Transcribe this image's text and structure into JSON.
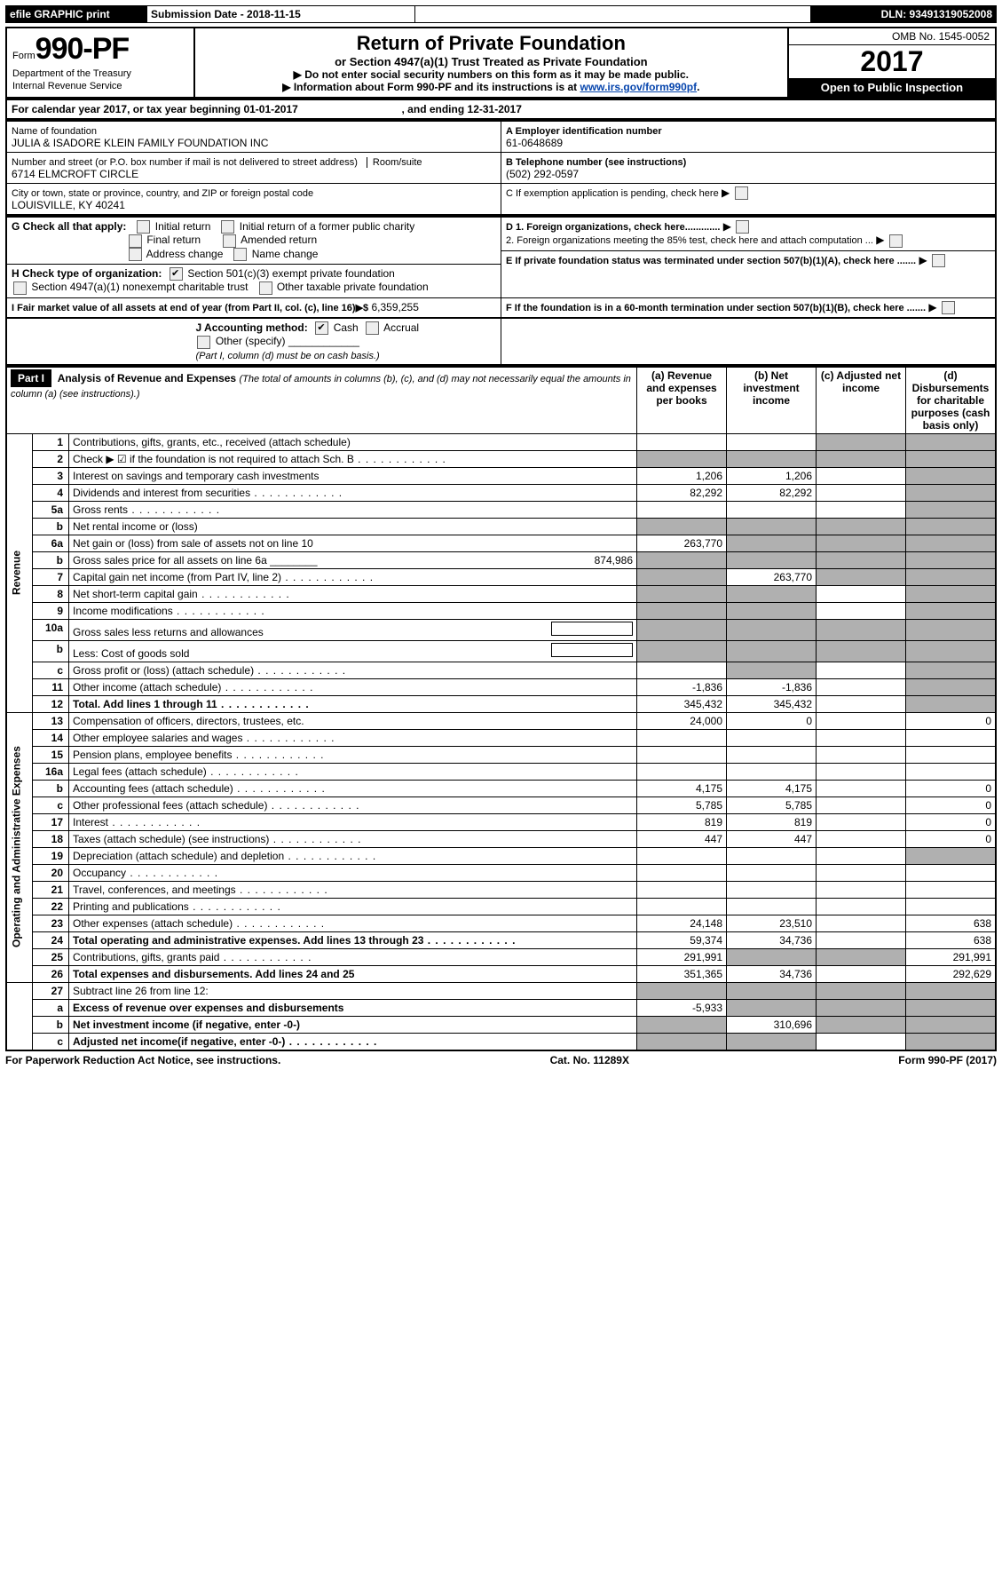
{
  "topbar": {
    "efile": "efile GRAPHIC print",
    "sub_label": "Submission Date - 2018-11-15",
    "dln_label": "DLN: 93491319052008"
  },
  "header": {
    "form_prefix": "Form",
    "form_number": "990-PF",
    "dept": "Department of the Treasury",
    "irs": "Internal Revenue Service",
    "title": "Return of Private Foundation",
    "subtitle": "or Section 4947(a)(1) Trust Treated as Private Foundation",
    "warn": "▶ Do not enter social security numbers on this form as it may be made public.",
    "info_pre": "▶ Information about Form 990-PF and its instructions is at ",
    "info_link": "www.irs.gov/form990pf",
    "omb": "OMB No. 1545-0052",
    "year": "2017",
    "open": "Open to Public Inspection"
  },
  "cal": {
    "line": "For calendar year 2017, or tax year beginning 01-01-2017",
    "mid": ", and ending 12-31-2017"
  },
  "id": {
    "name_label": "Name of foundation",
    "name": "JULIA & ISADORE KLEIN FAMILY FOUNDATION INC",
    "street_label": "Number and street (or P.O. box number if mail is not delivered to street address)",
    "room_label": "Room/suite",
    "street": "6714 ELMCROFT CIRCLE",
    "city_label": "City or town, state or province, country, and ZIP or foreign postal code",
    "city": "LOUISVILLE, KY  40241",
    "ein_label": "A Employer identification number",
    "ein": "61-0648689",
    "phone_label": "B Telephone number (see instructions)",
    "phone": "(502) 292-0597",
    "c": "C If exemption application is pending, check here",
    "d1": "D 1. Foreign organizations, check here.............",
    "d2": "2. Foreign organizations meeting the 85% test, check here and attach computation ...",
    "e": "E  If private foundation status was terminated under section 507(b)(1)(A), check here .......",
    "f": "F  If the foundation is in a 60-month termination under section 507(b)(1)(B), check here .......",
    "g_label": "G Check all that apply:",
    "g_opts": {
      "initial": "Initial return",
      "initial_former": "Initial return of a former public charity",
      "final": "Final return",
      "amended": "Amended return",
      "address": "Address change",
      "name": "Name change"
    },
    "h_label": "H Check type of organization:",
    "h1": "Section 501(c)(3) exempt private foundation",
    "h2": "Section 4947(a)(1) nonexempt charitable trust",
    "h3": "Other taxable private foundation",
    "i_label": "I Fair market value of all assets at end of year (from Part II, col. (c), line 16)▶$",
    "i_val": "6,359,255",
    "j_label": "J Accounting method:",
    "j_cash": "Cash",
    "j_accrual": "Accrual",
    "j_other": "Other (specify)",
    "j_note": "(Part I, column (d) must be on cash basis.)"
  },
  "part1": {
    "label": "Part I",
    "title": "Analysis of Revenue and Expenses",
    "note": "(The total of amounts in columns (b), (c), and (d) may not necessarily equal the amounts in column (a) (see instructions).)",
    "cols": {
      "a": "(a)   Revenue and expenses per books",
      "b": "(b)   Net investment income",
      "c": "(c)  Adjusted net income",
      "d": "(d)  Disbursements for charitable purposes (cash basis only)"
    },
    "rev_label": "Revenue",
    "exp_label": "Operating and Administrative Expenses"
  },
  "rows": [
    {
      "n": "1",
      "d": "Contributions, gifts, grants, etc., received (attach schedule)"
    },
    {
      "n": "2",
      "d": "Check ▶ ☑ if the foundation is not required to attach Sch. B",
      "dots": true
    },
    {
      "n": "3",
      "d": "Interest on savings and temporary cash investments",
      "a": "1,206",
      "b": "1,206"
    },
    {
      "n": "4",
      "d": "Dividends and interest from securities",
      "dots": true,
      "a": "82,292",
      "b": "82,292"
    },
    {
      "n": "5a",
      "d": "Gross rents",
      "dots": true
    },
    {
      "n": "b",
      "d": "Net rental income or (loss)"
    },
    {
      "n": "6a",
      "d": "Net gain or (loss) from sale of assets not on line 10",
      "a": "263,770"
    },
    {
      "n": "b",
      "d": "Gross sales price for all assets on line 6a",
      "inline": "874,986"
    },
    {
      "n": "7",
      "d": "Capital gain net income (from Part IV, line 2)",
      "dots": true,
      "b": "263,770"
    },
    {
      "n": "8",
      "d": "Net short-term capital gain",
      "dots": true
    },
    {
      "n": "9",
      "d": "Income modifications",
      "dots": true
    },
    {
      "n": "10a",
      "d": "Gross sales less returns and allowances",
      "box": true
    },
    {
      "n": "b",
      "d": "Less: Cost of goods sold",
      "dots": true,
      "box": true
    },
    {
      "n": "c",
      "d": "Gross profit or (loss) (attach schedule)",
      "dots": true
    },
    {
      "n": "11",
      "d": "Other income (attach schedule)",
      "dots": true,
      "a": "-1,836",
      "b": "-1,836"
    },
    {
      "n": "12",
      "d": "Total. Add lines 1 through 11",
      "bold": true,
      "dots": true,
      "a": "345,432",
      "b": "345,432"
    }
  ],
  "exp_rows": [
    {
      "n": "13",
      "d": "Compensation of officers, directors, trustees, etc.",
      "a": "24,000",
      "b": "0",
      "dd": "0"
    },
    {
      "n": "14",
      "d": "Other employee salaries and wages",
      "dots": true
    },
    {
      "n": "15",
      "d": "Pension plans, employee benefits",
      "dots": true
    },
    {
      "n": "16a",
      "d": "Legal fees (attach schedule)",
      "dots": true
    },
    {
      "n": "b",
      "d": "Accounting fees (attach schedule)",
      "dots": true,
      "a": "4,175",
      "b": "4,175",
      "dd": "0"
    },
    {
      "n": "c",
      "d": "Other professional fees (attach schedule)",
      "dots": true,
      "a": "5,785",
      "b": "5,785",
      "dd": "0"
    },
    {
      "n": "17",
      "d": "Interest",
      "dots": true,
      "a": "819",
      "b": "819",
      "dd": "0"
    },
    {
      "n": "18",
      "d": "Taxes (attach schedule) (see instructions)",
      "dots": true,
      "a": "447",
      "b": "447",
      "dd": "0"
    },
    {
      "n": "19",
      "d": "Depreciation (attach schedule) and depletion",
      "dots": true
    },
    {
      "n": "20",
      "d": "Occupancy",
      "dots": true
    },
    {
      "n": "21",
      "d": "Travel, conferences, and meetings",
      "dots": true
    },
    {
      "n": "22",
      "d": "Printing and publications",
      "dots": true
    },
    {
      "n": "23",
      "d": "Other expenses (attach schedule)",
      "dots": true,
      "a": "24,148",
      "b": "23,510",
      "dd": "638"
    },
    {
      "n": "24",
      "d": "Total operating and administrative expenses. Add lines 13 through 23",
      "bold": true,
      "dots": true,
      "a": "59,374",
      "b": "34,736",
      "dd": "638"
    },
    {
      "n": "25",
      "d": "Contributions, gifts, grants paid",
      "dots": true,
      "a": "291,991",
      "dd": "291,991"
    },
    {
      "n": "26",
      "d": "Total expenses and disbursements. Add lines 24 and 25",
      "bold": true,
      "a": "351,365",
      "b": "34,736",
      "dd": "292,629"
    }
  ],
  "bottom_rows": [
    {
      "n": "27",
      "d": "Subtract line 26 from line 12:"
    },
    {
      "n": "a",
      "d": "Excess of revenue over expenses and disbursements",
      "bold": true,
      "a": "-5,933"
    },
    {
      "n": "b",
      "d": "Net investment income (if negative, enter -0-)",
      "bold": true,
      "b": "310,696"
    },
    {
      "n": "c",
      "d": "Adjusted net income(if negative, enter -0-)",
      "bold": true,
      "dots": true
    }
  ],
  "footer": {
    "left": "For Paperwork Reduction Act Notice, see instructions.",
    "mid": "Cat. No. 11289X",
    "right": "Form 990-PF (2017)"
  }
}
